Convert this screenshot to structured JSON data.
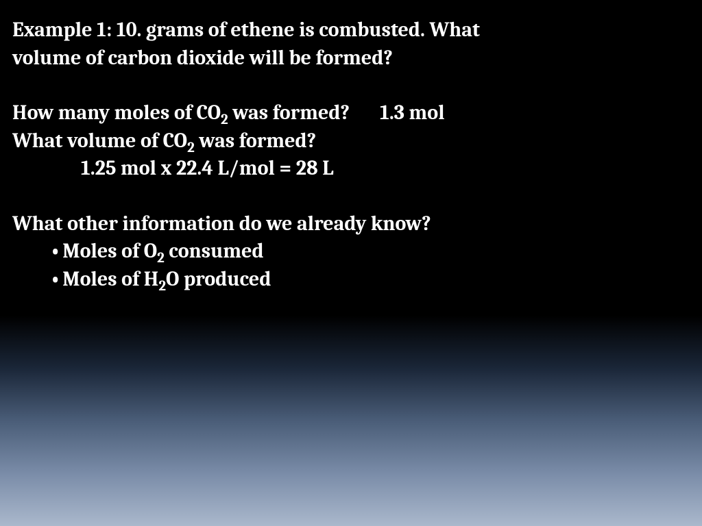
{
  "slide": {
    "background_top": "#000000",
    "background_bottom": "#aab8cc",
    "text_color": "#ffffff",
    "font_family": "Cambria, Georgia, serif",
    "font_size_pt": 26,
    "font_weight": "bold",
    "title_line1": "Example 1: 10. grams of ethene is combusted.  What",
    "title_line2": "volume of carbon dioxide will be formed?",
    "q1_text": "How many moles of CO",
    "q1_sub": "2",
    "q1_tail": " was formed?",
    "q1_answer": "1.3 mol",
    "q2_text": "What volume of CO",
    "q2_sub": "2",
    "q2_tail": " was formed?",
    "q2_calc": "1.25 mol x 22.4 L/mol = 28 L",
    "q3_text": "What other information do we already know?",
    "bullets": {
      "b1_pre": "Moles of O",
      "b1_sub": "2",
      "b1_post": " consumed",
      "b2_pre": "Moles of H",
      "b2_sub": "2",
      "b2_post": "O produced"
    }
  }
}
